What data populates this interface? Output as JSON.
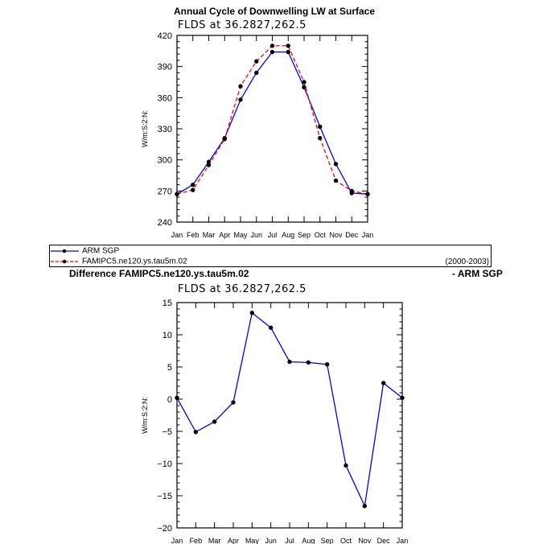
{
  "top_title": "Annual Cycle of Downwelling LW at Surface",
  "diff_title_left": "Difference FAMIPC5.ne120.ys.tau5m.02",
  "diff_title_right": "- ARM SGP",
  "legend": {
    "arm_label": "ARM SGP",
    "model_label": "FAMIPC5.ne120.ys.tau5m.02",
    "years": "(2000-2003)"
  },
  "colors": {
    "arm": "#0000ff",
    "model": "#ff0000",
    "marker": "#000000"
  },
  "chart_data": [
    {
      "type": "line",
      "subtitle": "FLDS at 36.2827,262.5",
      "ylabel": "W/m:S:2:N:",
      "ylim": [
        240,
        420
      ],
      "yticks": [
        240,
        270,
        300,
        330,
        360,
        390,
        420
      ],
      "categories": [
        "Jan",
        "Feb",
        "Mar",
        "Apr",
        "May",
        "Jun",
        "Jul",
        "Aug",
        "Sep",
        "Oct",
        "Nov",
        "Dec",
        "Jan"
      ],
      "series": [
        {
          "name": "ARM SGP",
          "style": "solid",
          "color": "#0000ff",
          "values": [
            267,
            276,
            298,
            321,
            358,
            384,
            404,
            404,
            370,
            332,
            296,
            268,
            267
          ]
        },
        {
          "name": "FAMIPC5.ne120.ys.tau5m.02",
          "style": "dashed",
          "color": "#ff0000",
          "values": [
            267,
            271,
            295,
            320,
            371,
            395,
            410,
            410,
            375,
            321,
            280,
            270,
            267
          ]
        }
      ]
    },
    {
      "type": "line",
      "subtitle": "FLDS at 36.2827,262.5",
      "ylabel": "W/m:S:2:N:",
      "ylim": [
        -20,
        15
      ],
      "yticks": [
        -20,
        -15,
        -10,
        -5,
        0,
        5,
        10,
        15
      ],
      "categories": [
        "Jan",
        "Feb",
        "Mar",
        "Apr",
        "May",
        "Jun",
        "Jul",
        "Aug",
        "Sep",
        "Oct",
        "Nov",
        "Dec",
        "Jan"
      ],
      "series": [
        {
          "style": "solid",
          "color": "#0000ff",
          "values": [
            0.2,
            -5.1,
            -3.5,
            -0.5,
            13.4,
            11.1,
            5.8,
            5.7,
            5.4,
            -10.3,
            -16.6,
            2.5,
            0.2
          ]
        }
      ]
    }
  ]
}
